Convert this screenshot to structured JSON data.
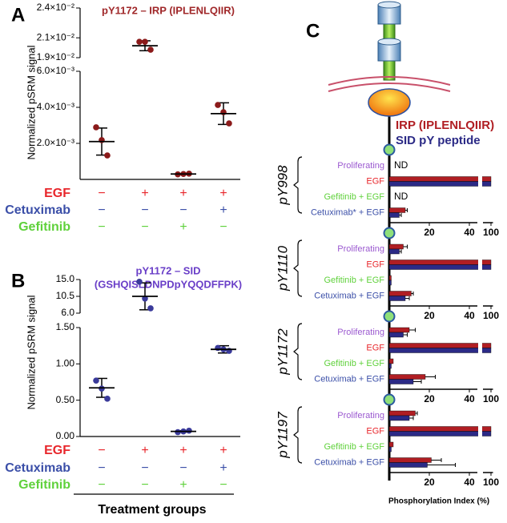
{
  "panel_labels": [
    "A",
    "B",
    "C"
  ],
  "treatments": [
    {
      "name": "EGF",
      "color": "#e8262b",
      "levels": [
        "−",
        "+",
        "+",
        "+"
      ]
    },
    {
      "name": "Cetuximab",
      "color": "#3b4fa8",
      "levels": [
        "−",
        "−",
        "−",
        "+"
      ]
    },
    {
      "name": "Gefitinib",
      "color": "#5fd13b",
      "levels": [
        "−",
        "−",
        "+",
        "−"
      ]
    }
  ],
  "chart_data": [
    {
      "type": "dotplot",
      "title": "pY1172 – IRP (IPLENLQIIR)",
      "ylabel": "Normalized pSRM signal",
      "point_color": "#8b1a1a",
      "segments": [
        {
          "ylim": [
            0,
            0.006
          ],
          "yticks": [
            {
              "value": 0.002,
              "label": "2.0×10⁻³"
            },
            {
              "value": 0.004,
              "label": "4.0×10⁻³"
            },
            {
              "value": 0.006,
              "label": "6.0×10⁻³"
            }
          ]
        },
        {
          "ylim": [
            0.019,
            0.024
          ],
          "yticks": [
            {
              "value": 0.019,
              "label": "1.9×10⁻²"
            },
            {
              "value": 0.021,
              "label": "2.1×10⁻²"
            },
            {
              "value": 0.024,
              "label": "2.4×10⁻²"
            }
          ]
        }
      ],
      "groups": [
        {
          "points": [
            0.00289,
            0.00218,
            0.00133
          ],
          "mean": 0.0021,
          "sd": 0.00075
        },
        {
          "points": [
            0.0206,
            0.0206,
            0.0198
          ],
          "mean": 0.0202,
          "sd": 0.0005
        },
        {
          "points": [
            0.00028,
            0.0003,
            0.00032
          ],
          "mean": 0.0003,
          "sd": 2e-05
        },
        {
          "points": [
            0.00413,
            0.00373,
            0.00311
          ],
          "mean": 0.00365,
          "sd": 0.0006
        }
      ]
    },
    {
      "type": "dotplot",
      "title": "pY1172 – SID",
      "subtitle": "(GSHQISLDNPDpYQQDFFPK)",
      "ylabel": "Normalized pSRM signal",
      "xlabel": "Treatment groups",
      "point_color": "#3a3a9a",
      "segments": [
        {
          "ylim": [
            0,
            1.5
          ],
          "yticks": [
            {
              "value": 0,
              "label": "0.00"
            },
            {
              "value": 0.5,
              "label": "0.50"
            },
            {
              "value": 1,
              "label": "1.00"
            },
            {
              "value": 1.5,
              "label": "1.50"
            }
          ]
        },
        {
          "ylim": [
            6,
            15
          ],
          "yticks": [
            {
              "value": 6,
              "label": "6.0"
            },
            {
              "value": 10.5,
              "label": "10.5"
            },
            {
              "value": 15,
              "label": "15.0"
            }
          ]
        }
      ],
      "groups": [
        {
          "points": [
            0.77,
            0.66,
            0.52
          ],
          "mean": 0.67,
          "sd": 0.13
        },
        {
          "points": [
            14.4,
            9.9,
            7.3
          ],
          "mean": 10.5,
          "sd": 3.6
        },
        {
          "points": [
            0.06,
            0.07,
            0.08
          ],
          "mean": 0.07,
          "sd": 0.01
        },
        {
          "points": [
            1.22,
            1.2,
            1.18
          ],
          "mean": 1.2,
          "sd": 0.05
        }
      ]
    },
    {
      "type": "hbar",
      "xlabel": "Phosphorylation Index (%)",
      "xsegments": [
        {
          "xlim": [
            0,
            44
          ]
        },
        {
          "xlim": [
            96,
            101
          ]
        }
      ],
      "xticks": [
        20,
        40,
        100
      ],
      "series": [
        {
          "name": "IRP (IPLENLQIIR)",
          "color": "#b01e23"
        },
        {
          "name": "SID pY peptide",
          "color": "#2b2a86"
        }
      ],
      "category_colors": [
        "#9b59d0",
        "#e8262b",
        "#5fd13b",
        "#3b4fa8"
      ],
      "groups": [
        {
          "name": "pY998",
          "categories": [
            "Proliferating",
            "EGF",
            "Gefitinib + EGF",
            "Cetuximab* + EGF"
          ],
          "values": [
            [
              null,
              100,
              null,
              8
            ],
            [
              null,
              100,
              null,
              5
            ]
          ],
          "errors": [
            [
              null,
              null,
              null,
              1
            ],
            [
              null,
              null,
              null,
              1
            ]
          ],
          "notes": [
            "ND",
            null,
            "ND",
            null
          ]
        },
        {
          "name": "pY1110",
          "categories": [
            "Proliferating",
            "EGF",
            "Gefitinib + EGF",
            "Cetuximab + EGF"
          ],
          "values": [
            [
              7,
              100,
              1,
              11
            ],
            [
              5,
              100,
              1,
              8
            ]
          ],
          "errors": [
            [
              2,
              null,
              null,
              1
            ],
            [
              1,
              null,
              null,
              2
            ]
          ]
        },
        {
          "name": "pY1172",
          "categories": [
            "Proliferating",
            "EGF",
            "Gefitinib + EGF",
            "Cetuximab + EGF"
          ],
          "values": [
            [
              10,
              100,
              2,
              18
            ],
            [
              7,
              100,
              1,
              12
            ]
          ],
          "errors": [
            [
              3,
              null,
              null,
              5
            ],
            [
              2,
              null,
              null,
              4
            ]
          ]
        },
        {
          "name": "pY1197",
          "categories": [
            "Proliferating",
            "EGF",
            "Gefitinib + EGF",
            "Cetuximab + EGF"
          ],
          "values": [
            [
              13,
              100,
              2,
              21
            ],
            [
              10,
              100,
              1,
              19
            ]
          ],
          "errors": [
            [
              1,
              null,
              null,
              5
            ],
            [
              2,
              null,
              null,
              14
            ]
          ]
        }
      ]
    }
  ]
}
